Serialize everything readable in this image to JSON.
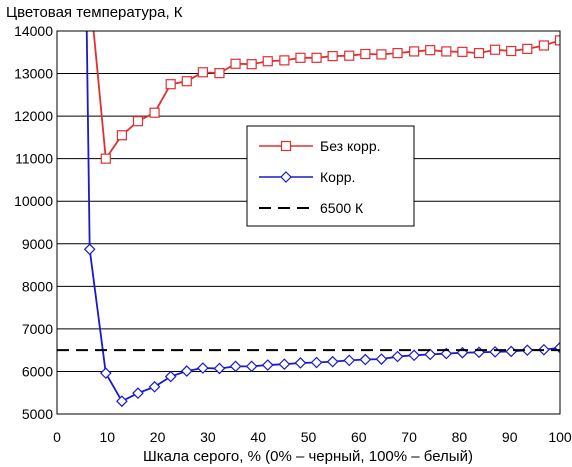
{
  "chart_data": {
    "type": "line",
    "ylabel": "Цветовая температура, К",
    "xlabel": "Шкала серого, % (0% – черный, 100% – белый)",
    "xlim": [
      0,
      100
    ],
    "ylim": [
      5000,
      14000
    ],
    "x_ticks": [
      "0",
      "10",
      "20",
      "30",
      "40",
      "50",
      "60",
      "70",
      "80",
      "90",
      "100"
    ],
    "y_ticks": [
      "5000",
      "6000",
      "7000",
      "8000",
      "9000",
      "10000",
      "11000",
      "12000",
      "13000",
      "14000"
    ],
    "grid": "horizontal",
    "legend_position": "center-right",
    "series": [
      {
        "name": "Без корр.",
        "color": "#e03030",
        "marker": "square",
        "x": [
          9.7,
          12.9,
          16.1,
          19.4,
          22.6,
          25.8,
          29.0,
          32.3,
          35.5,
          38.7,
          41.9,
          45.2,
          48.4,
          51.6,
          54.8,
          58.1,
          61.3,
          64.5,
          67.7,
          71.0,
          74.2,
          77.4,
          80.6,
          83.9,
          87.1,
          90.3,
          93.5,
          96.8,
          100
        ],
        "y": [
          11000,
          11550,
          11880,
          12080,
          12750,
          12820,
          13030,
          13010,
          13230,
          13220,
          13290,
          13310,
          13370,
          13370,
          13410,
          13420,
          13460,
          13450,
          13480,
          13520,
          13550,
          13520,
          13510,
          13480,
          13560,
          13530,
          13580,
          13660,
          13780
        ],
        "lead_in": {
          "x": [
            6.8,
            9.7
          ],
          "y": [
            14600,
            11000
          ]
        }
      },
      {
        "name": "Корр.",
        "color": "#1a1acc",
        "marker": "diamond",
        "x": [
          6.5,
          9.7,
          12.9,
          16.1,
          19.4,
          22.6,
          25.8,
          29.0,
          32.3,
          35.5,
          38.7,
          41.9,
          45.2,
          48.4,
          51.6,
          54.8,
          58.1,
          61.3,
          64.5,
          67.7,
          71.0,
          74.2,
          77.4,
          80.6,
          83.9,
          87.1,
          90.3,
          93.5,
          96.8,
          100
        ],
        "y": [
          8870,
          5960,
          5300,
          5490,
          5640,
          5880,
          6010,
          6080,
          6070,
          6120,
          6120,
          6150,
          6170,
          6200,
          6210,
          6230,
          6260,
          6280,
          6290,
          6350,
          6380,
          6400,
          6420,
          6440,
          6450,
          6460,
          6470,
          6500,
          6510,
          6560
        ],
        "lead_in": {
          "x": [
            5.8,
            6.5
          ],
          "y": [
            15000,
            8870
          ]
        }
      },
      {
        "name": "6500 К",
        "color": "#000000",
        "style": "dashed",
        "x": [
          0,
          100
        ],
        "y": [
          6500,
          6500
        ]
      }
    ]
  }
}
